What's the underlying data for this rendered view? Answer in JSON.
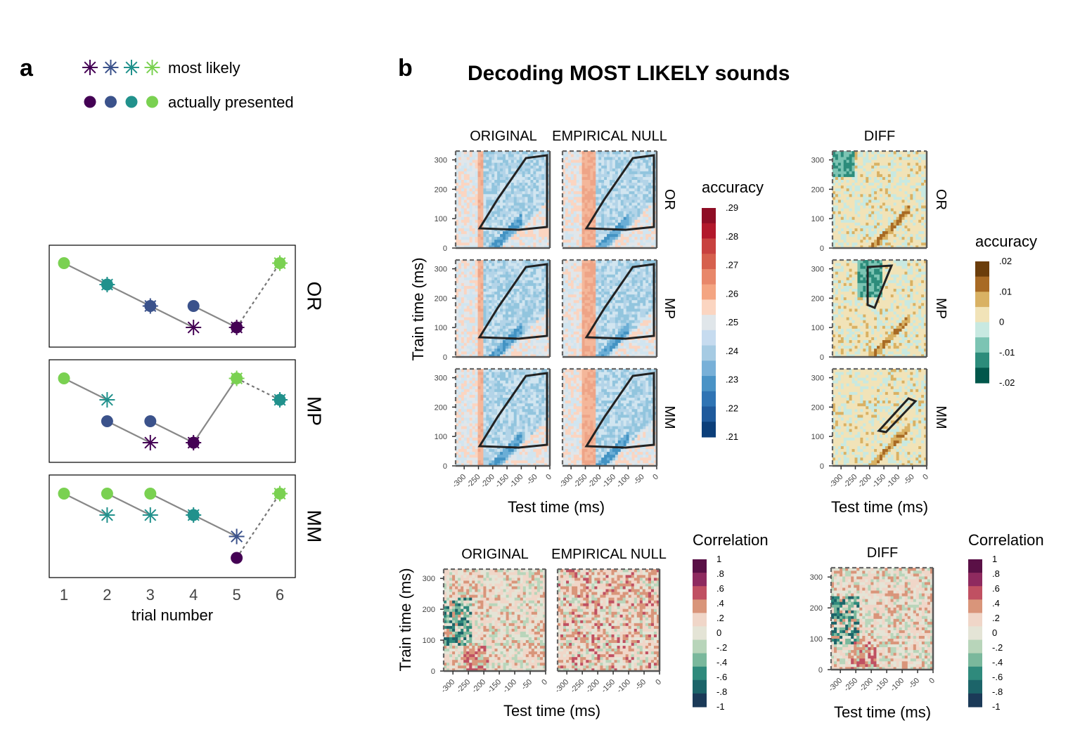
{
  "panel_a": {
    "label": "a",
    "legend": {
      "most_likely": "most likely",
      "actually_presented": "actually presented"
    },
    "colors": [
      "#440154",
      "#3b528b",
      "#21918c",
      "#7ad151"
    ],
    "xlabel": "trial number",
    "x_ticks": [
      "1",
      "2",
      "3",
      "4",
      "5",
      "6"
    ]
  },
  "panel_b": {
    "label": "b",
    "title": "Decoding MOST LIKELY sounds",
    "col_titles": [
      "ORIGINAL",
      "EMPIRICAL NULL",
      "DIFF"
    ],
    "row_titles": [
      "OR",
      "MP",
      "MM"
    ],
    "ylabel": "Train time (ms)",
    "xlabel": "Test time (ms)",
    "x_ticks": [
      "-300",
      "-250",
      "-200",
      "-150",
      "-100",
      "-50",
      "0"
    ],
    "y_ticks": [
      "0",
      "100",
      "200",
      "300"
    ],
    "accuracy_legend": {
      "title": "accuracy",
      "labels": [
        ".29",
        ".28",
        ".27",
        ".26",
        ".25",
        ".24",
        ".23",
        ".22",
        ".21"
      ],
      "colors": [
        "#8e0d25",
        "#b2182b",
        "#d6604d",
        "#e8876a",
        "#f4a582",
        "#fbd5c1",
        "#e5e5e5",
        "#d1e5f0",
        "#b3d4e8",
        "#92c5de",
        "#6baed6",
        "#4393c3",
        "#2c6fae",
        "#2166ac",
        "#053061"
      ]
    },
    "diff_legend": {
      "title": "accuracy",
      "labels": [
        ".02",
        ".01",
        "0",
        "-.01",
        "-.02"
      ],
      "colors": [
        "#6b3d0b",
        "#a86a24",
        "#d9b163",
        "#f1e3b8",
        "#c8e9e1",
        "#7cc4b3",
        "#2c8c7b",
        "#01574b"
      ]
    },
    "corr_col_titles": [
      "ORIGINAL",
      "EMPIRICAL NULL",
      "DIFF"
    ],
    "corr_legend": {
      "title": "Correlation",
      "labels": [
        "1",
        ".8",
        ".6",
        ".4",
        ".2",
        "0",
        "-.2",
        "-.4",
        "-.6",
        "-.8",
        "-1"
      ],
      "colors": [
        "#5a1046",
        "#8e2a5f",
        "#c05062",
        "#d9957a",
        "#f0d6c8",
        "#e4e4d6",
        "#b8d5ba",
        "#7ab89c",
        "#2f8a7c",
        "#1c6469",
        "#1b3a58"
      ]
    }
  },
  "chart_data": [
    {
      "type": "line",
      "panel": "a",
      "x": [
        1,
        2,
        3,
        4,
        5,
        6
      ],
      "xlabel": "trial number",
      "facets": [
        {
          "name": "OR",
          "most_likely_level": [
            null,
            3,
            2,
            1,
            1,
            4
          ],
          "presented_level": [
            4,
            3,
            2,
            2,
            1,
            4
          ],
          "presented_color_index": [
            3,
            2,
            1,
            1,
            0,
            3
          ],
          "most_likely_color_index": [
            null,
            2,
            1,
            0,
            0,
            3
          ]
        },
        {
          "name": "MP",
          "most_likely_level": [
            null,
            3,
            1,
            1,
            4,
            3
          ],
          "presented_level": [
            4,
            2,
            2,
            1,
            4,
            3
          ],
          "presented_color_index": [
            3,
            1,
            1,
            0,
            3,
            2
          ],
          "most_likely_color_index": [
            null,
            2,
            0,
            0,
            3,
            2
          ]
        },
        {
          "name": "MM",
          "most_likely_level": [
            null,
            3,
            3,
            3,
            2,
            4
          ],
          "presented_level": [
            4,
            4,
            4,
            3,
            1,
            4
          ],
          "presented_color_index": [
            3,
            3,
            3,
            2,
            0,
            3
          ],
          "most_likely_color_index": [
            null,
            2,
            2,
            2,
            1,
            3
          ]
        }
      ]
    },
    {
      "type": "heatmap",
      "panel": "b",
      "title": "Decoding MOST LIKELY sounds",
      "xlabel": "Test time (ms)",
      "ylabel": "Train time (ms)",
      "x_range": [
        -330,
        0
      ],
      "y_range": [
        0,
        330
      ],
      "value_name": "accuracy",
      "color_range": [
        0.21,
        0.29
      ],
      "diff_color_range": [
        -0.02,
        0.02
      ],
      "columns": [
        "ORIGINAL",
        "EMPIRICAL NULL",
        "DIFF"
      ],
      "rows": [
        "OR",
        "MP",
        "MM"
      ]
    },
    {
      "type": "heatmap",
      "panel": "b",
      "xlabel": "Test time (ms)",
      "ylabel": "Train time (ms)",
      "x_range": [
        -330,
        0
      ],
      "y_range": [
        0,
        330
      ],
      "value_name": "Correlation",
      "color_range": [
        -1,
        1
      ],
      "columns": [
        "ORIGINAL",
        "EMPIRICAL NULL",
        "DIFF"
      ]
    }
  ]
}
